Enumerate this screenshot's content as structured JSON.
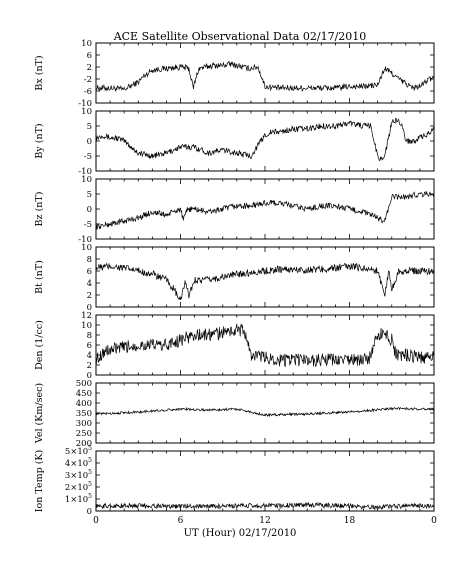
{
  "title": "ACE Satellite Observational Data   02/17/2010",
  "xlabel": "UT (Hour)   02/17/2010",
  "x_ticks": [
    "0",
    "6",
    "12",
    "18",
    "0"
  ],
  "colors": {
    "line": "#000000",
    "background": "#ffffff"
  },
  "chart_data": [
    {
      "type": "line",
      "ylabel": "Bx (nT)",
      "ylim": [
        -10,
        10
      ],
      "yticks": [
        {
          "v": -10,
          "t": "-10"
        },
        {
          "v": -6,
          "t": "-6"
        },
        {
          "v": -2,
          "t": "-2"
        },
        {
          "v": 2,
          "t": "2"
        },
        {
          "v": 6,
          "t": "6"
        },
        {
          "v": 10,
          "t": "10"
        }
      ],
      "x_hours": [
        0,
        1,
        2,
        3,
        3.4,
        4,
        5,
        6,
        6.6,
        6.9,
        7.3,
        7.8,
        8.3,
        9,
        9.5,
        10,
        10.8,
        11.5,
        12,
        13,
        14,
        15,
        16,
        17,
        18,
        19,
        20,
        20.5,
        21,
        21.5,
        22,
        22.5,
        23,
        23.5,
        24
      ],
      "values": [
        -5,
        -5,
        -5.5,
        -3,
        -1,
        1,
        1.5,
        2,
        1.5,
        -5,
        1.5,
        2,
        2.5,
        2.5,
        3,
        2.5,
        1.5,
        2,
        -4.5,
        -5,
        -5,
        -5,
        -5,
        -5,
        -4.5,
        -4.5,
        -4,
        1.5,
        0,
        -2,
        -3.5,
        -5,
        -4.5,
        -2.5,
        -1.5
      ],
      "noise": 1.0
    },
    {
      "type": "line",
      "ylabel": "By (nT)",
      "ylim": [
        -10,
        10
      ],
      "yticks": [
        {
          "v": -10,
          "t": "-10"
        },
        {
          "v": -5,
          "t": "-5"
        },
        {
          "v": 0,
          "t": "0"
        },
        {
          "v": 5,
          "t": "5"
        },
        {
          "v": 10,
          "t": "10"
        }
      ],
      "x_hours": [
        0,
        0.5,
        1,
        1.5,
        2,
        3,
        4,
        5,
        5.5,
        6,
        7,
        8,
        9,
        10,
        11,
        12,
        12.5,
        13,
        14,
        15,
        16,
        17,
        18,
        19,
        19.5,
        20,
        20.2,
        20.5,
        21,
        21.3,
        21.7,
        22,
        22.5,
        23,
        23.5,
        24
      ],
      "values": [
        1,
        2,
        1,
        1,
        0,
        -4,
        -5,
        -4,
        -3,
        -2,
        -2,
        -4,
        -3,
        -4,
        -5,
        2,
        3,
        3,
        4,
        4,
        5,
        5,
        6,
        5,
        5,
        -5,
        -6,
        -5,
        6,
        7,
        6,
        0,
        0,
        1,
        2,
        4
      ],
      "noise": 1.0
    },
    {
      "type": "line",
      "ylabel": "Bz (nT)",
      "ylim": [
        -10,
        10
      ],
      "yticks": [
        {
          "v": -10,
          "t": "-10"
        },
        {
          "v": -5,
          "t": "-5"
        },
        {
          "v": 0,
          "t": "0"
        },
        {
          "v": 5,
          "t": "5"
        },
        {
          "v": 10,
          "t": "10"
        }
      ],
      "x_hours": [
        0,
        2,
        3,
        4,
        5,
        5.5,
        6,
        6.2,
        6.5,
        7,
        8,
        9,
        10,
        11,
        12,
        13,
        14,
        15,
        16,
        17,
        18,
        19,
        20,
        20.5,
        21,
        21.5,
        22,
        23,
        24
      ],
      "values": [
        -6,
        -4,
        -3,
        -1,
        -2,
        -1,
        0,
        -4,
        0,
        0,
        -1,
        0,
        1,
        1,
        2,
        2,
        1,
        0,
        1,
        1,
        0,
        -1,
        -3,
        -4,
        4,
        4,
        4,
        5,
        5
      ],
      "noise": 1.0
    },
    {
      "type": "line",
      "ylabel": "Bt (nT)",
      "ylim": [
        0,
        10
      ],
      "yticks": [
        {
          "v": 0,
          "t": "0"
        },
        {
          "v": 2,
          "t": "2"
        },
        {
          "v": 4,
          "t": "4"
        },
        {
          "v": 6,
          "t": "6"
        },
        {
          "v": 8,
          "t": "8"
        },
        {
          "v": 10,
          "t": "10"
        }
      ],
      "x_hours": [
        0,
        1,
        2,
        3,
        4,
        5,
        5.5,
        6,
        6.3,
        6.6,
        7,
        8,
        9,
        10,
        12,
        13,
        14,
        15,
        16,
        17,
        18,
        19,
        20,
        20.5,
        20.8,
        21,
        21.5,
        22,
        23,
        24
      ],
      "values": [
        6.5,
        6.8,
        6.5,
        6,
        5.5,
        4.5,
        3,
        1,
        4,
        2,
        4.5,
        4.5,
        5,
        5.5,
        6,
        6.3,
        6.2,
        6.2,
        6.3,
        6.5,
        6.8,
        6.5,
        6,
        2,
        6,
        3,
        6,
        6,
        6,
        6
      ],
      "noise": 0.6
    },
    {
      "type": "line",
      "ylabel": "Den (1/cc)",
      "ylim": [
        0,
        12
      ],
      "yticks": [
        {
          "v": 0,
          "t": "0"
        },
        {
          "v": 2,
          "t": "2"
        },
        {
          "v": 4,
          "t": "4"
        },
        {
          "v": 6,
          "t": "6"
        },
        {
          "v": 8,
          "t": "8"
        },
        {
          "v": 10,
          "t": "10"
        },
        {
          "v": 12,
          "t": "12"
        }
      ],
      "x_hours": [
        0,
        0.5,
        1,
        2,
        3,
        4,
        5,
        6,
        7,
        8,
        9,
        10,
        10.5,
        11,
        12,
        13,
        14,
        15,
        16,
        17,
        18,
        19,
        19.5,
        20,
        20.5,
        21,
        21.3,
        22,
        23,
        24
      ],
      "values": [
        3,
        4.5,
        5,
        5.5,
        6,
        6,
        6,
        7,
        8,
        8,
        8.5,
        9,
        9,
        4,
        3.5,
        3,
        3,
        3,
        3,
        3,
        3,
        3,
        3.5,
        8,
        8.5,
        7,
        4,
        4,
        3.5,
        3.5
      ],
      "noise": 1.3
    },
    {
      "type": "line",
      "ylabel": "Vel (Km/sec)",
      "ylim": [
        200,
        500
      ],
      "yticks": [
        {
          "v": 200,
          "t": "200"
        },
        {
          "v": 250,
          "t": "250"
        },
        {
          "v": 300,
          "t": "300"
        },
        {
          "v": 350,
          "t": "350"
        },
        {
          "v": 400,
          "t": "400"
        },
        {
          "v": 450,
          "t": "450"
        },
        {
          "v": 500,
          "t": "500"
        }
      ],
      "x_hours": [
        0,
        3,
        6,
        8,
        10,
        12,
        15,
        18,
        21,
        24
      ],
      "values": [
        345,
        355,
        370,
        365,
        370,
        340,
        345,
        355,
        372,
        370
      ],
      "noise": 6
    },
    {
      "type": "line",
      "ylabel": "Ion Temp (K)",
      "ylim": [
        0,
        500000
      ],
      "yticks": [
        {
          "v": 0,
          "t": "0",
          "base": "",
          "exp": ""
        },
        {
          "v": 100000,
          "t": "",
          "base": "1×10",
          "exp": "5"
        },
        {
          "v": 200000,
          "t": "",
          "base": "2×10",
          "exp": "5"
        },
        {
          "v": 300000,
          "t": "",
          "base": "3×10",
          "exp": "5"
        },
        {
          "v": 400000,
          "t": "",
          "base": "4×10",
          "exp": "5"
        },
        {
          "v": 500000,
          "t": "",
          "base": "5×10",
          "exp": "5"
        }
      ],
      "x_hours": [
        0,
        3,
        6,
        9,
        12,
        15,
        18,
        20,
        21,
        24
      ],
      "values": [
        40000,
        45000,
        40000,
        40000,
        45000,
        50000,
        40000,
        30000,
        40000,
        45000
      ],
      "noise": 20000
    }
  ]
}
